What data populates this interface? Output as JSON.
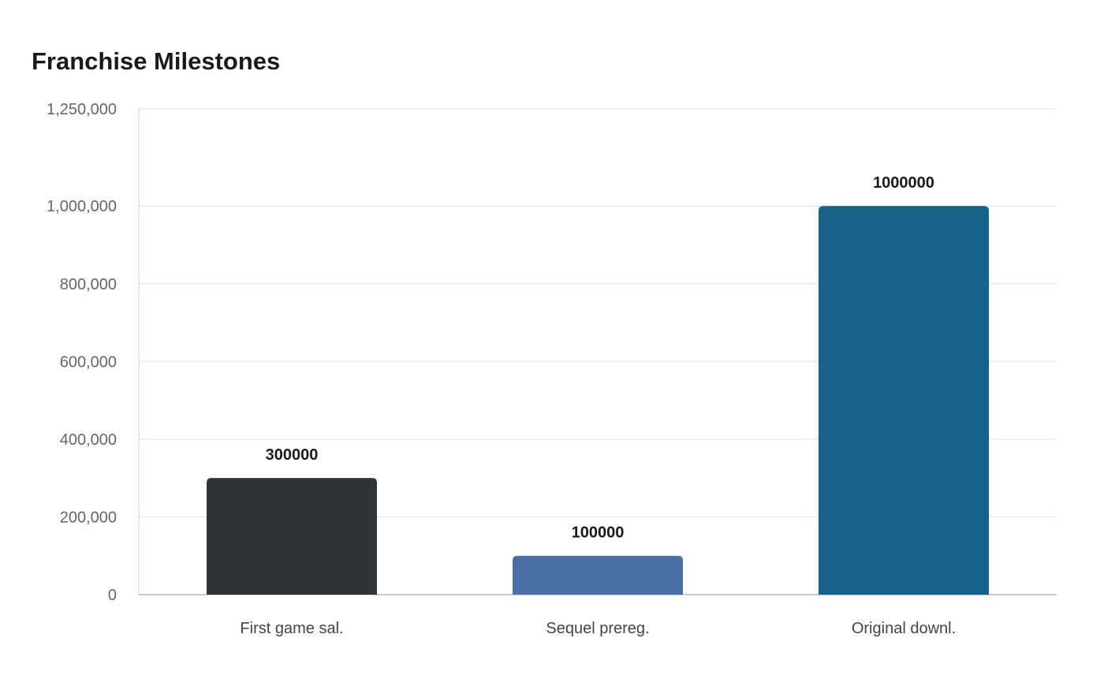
{
  "chart_data": {
    "type": "bar",
    "title": "Franchise Milestones",
    "xlabel": "",
    "ylabel": "",
    "categories": [
      "First game sal.",
      "Sequel prereg.",
      "Original downl."
    ],
    "values": [
      300000,
      100000,
      1000000
    ],
    "value_labels": [
      "300000",
      "100000",
      "1000000"
    ],
    "bar_colors": [
      "#2d3539",
      "#4a6fa5",
      "#166289"
    ],
    "y_ticks": [
      0,
      200000,
      400000,
      600000,
      800000,
      1000000,
      1250000
    ],
    "y_tick_labels": [
      "0",
      "200,000",
      "400,000",
      "600,000",
      "800,000",
      "1,000,000",
      "1,250,000"
    ],
    "ylim": [
      0,
      1250000
    ],
    "grid": true,
    "legend": "none"
  }
}
